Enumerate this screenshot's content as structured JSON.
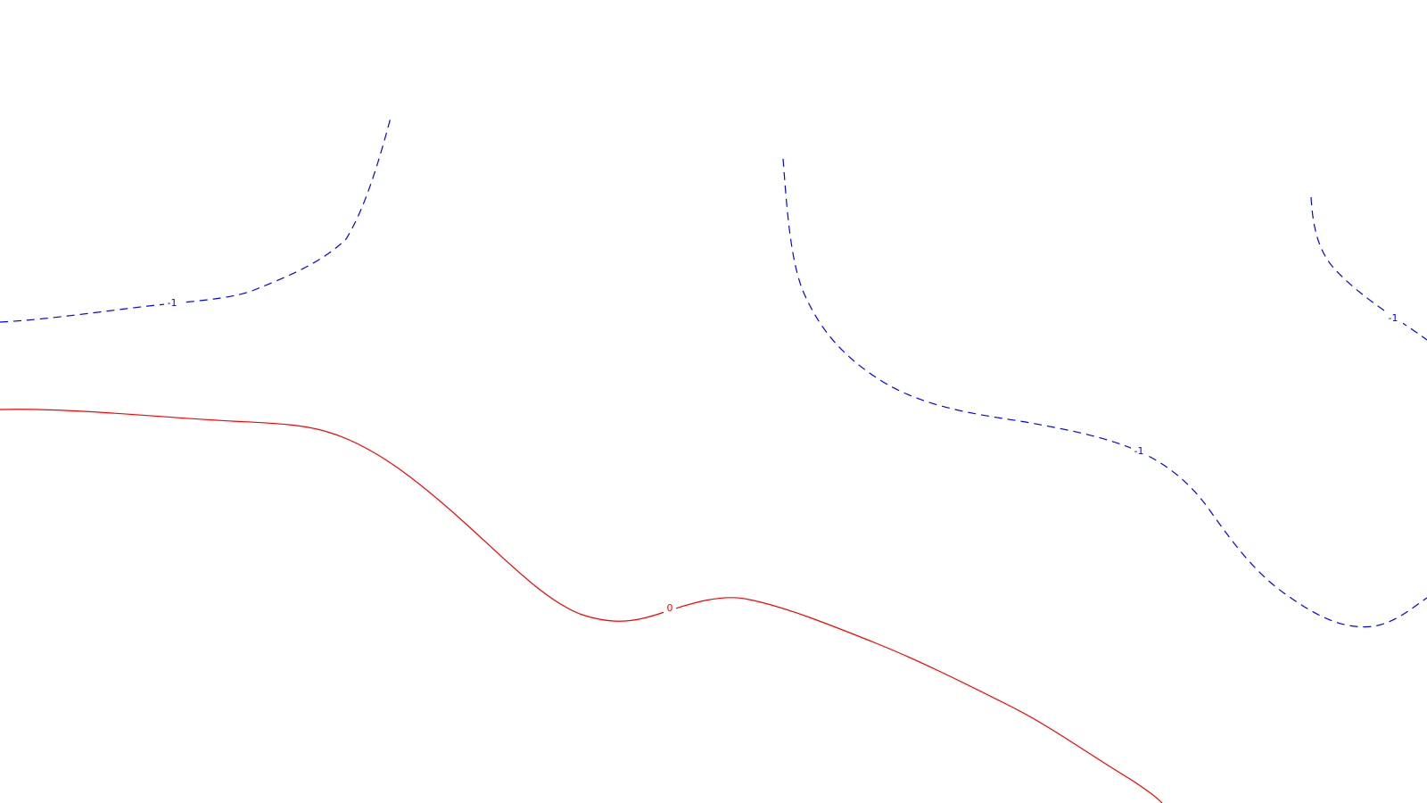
{
  "colors": {
    "background": "#ffffff",
    "negative_level": "#0000ff",
    "zero_level": "#ff0000"
  },
  "contours": [
    {
      "id": "contour-neg1-left",
      "level_label": "-1",
      "style": "dashed",
      "color": "#0000ff"
    },
    {
      "id": "contour-neg1-middle",
      "level_label": "-1",
      "style": "dashed",
      "color": "#0000ff"
    },
    {
      "id": "contour-neg1-right",
      "level_label": "-1",
      "style": "dashed",
      "color": "#0000ff"
    },
    {
      "id": "contour-zero",
      "level_label": "0",
      "style": "solid",
      "color": "#ff0000"
    }
  ]
}
